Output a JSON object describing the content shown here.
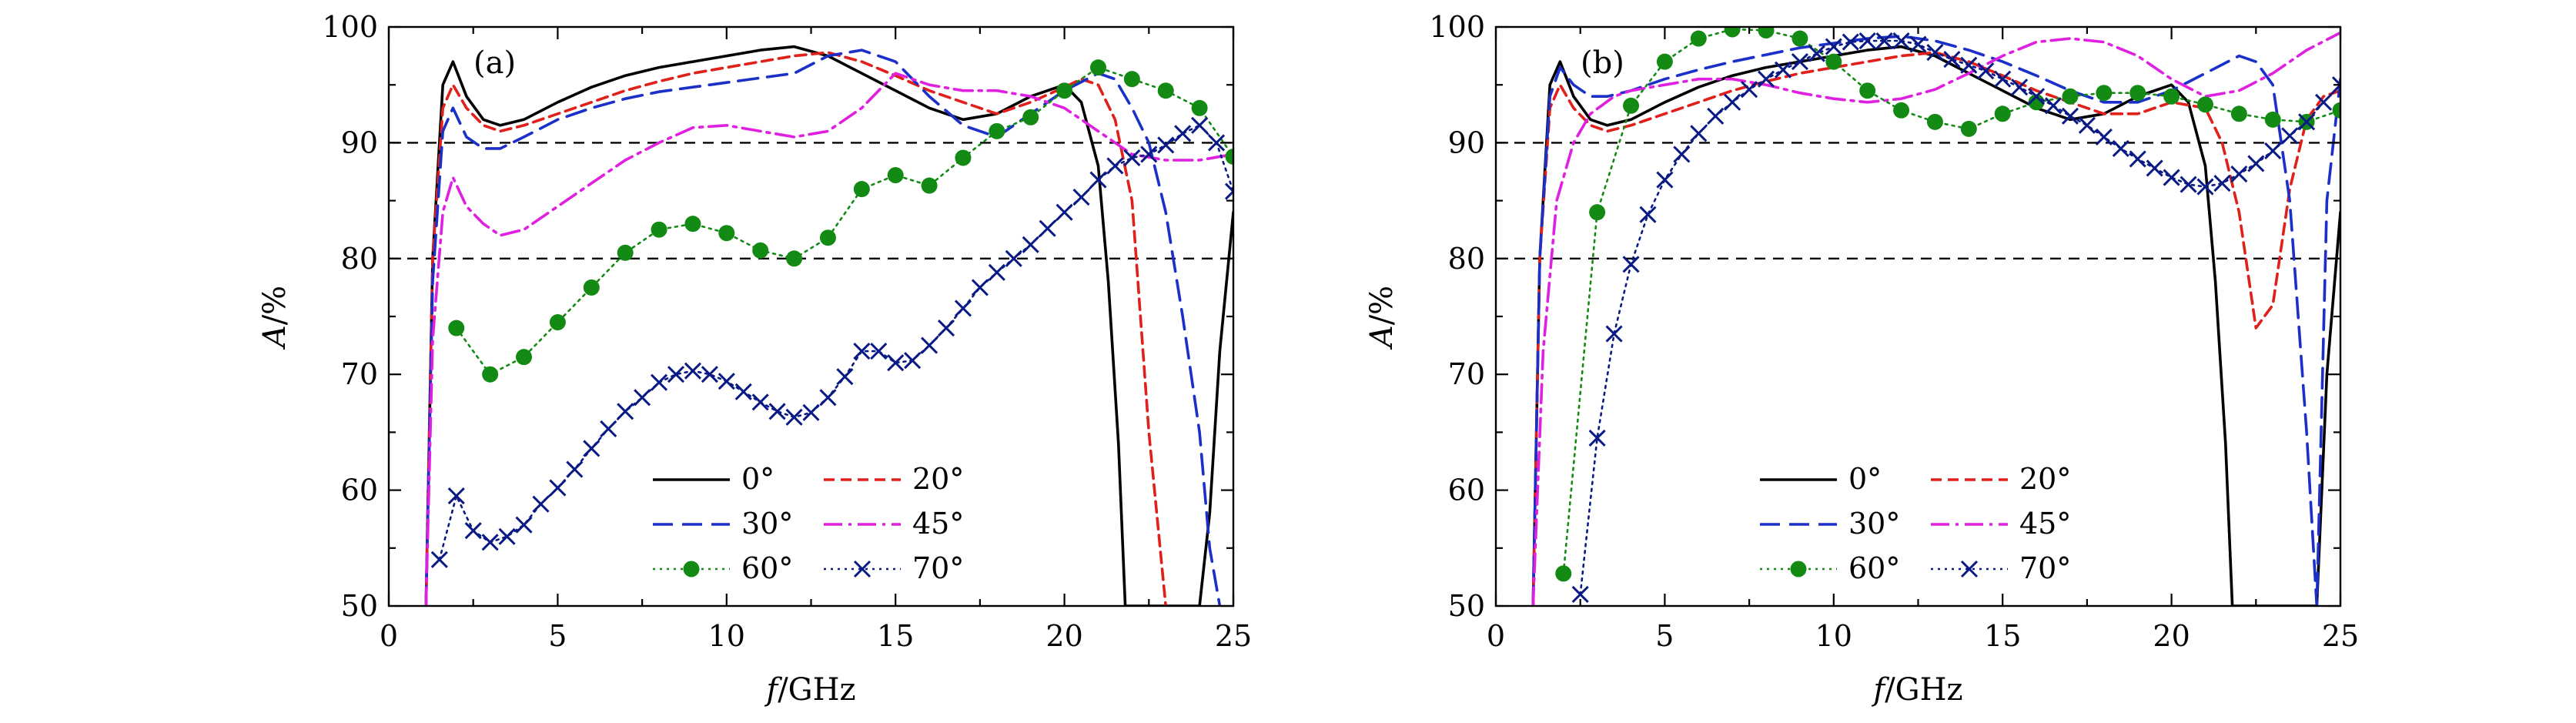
{
  "chart_data": [
    {
      "type": "line",
      "panel_label": "(a)",
      "xlabel_var": "f",
      "xlabel_unit": "/GHz",
      "ylabel_var": "A",
      "ylabel_unit": "/%",
      "xlim": [
        0,
        25
      ],
      "ylim": [
        50,
        100
      ],
      "xticks": [
        "0",
        "5",
        "10",
        "15",
        "20",
        "25"
      ],
      "yticks": [
        "50",
        "60",
        "70",
        "80",
        "90",
        "100"
      ],
      "reference_lines": [
        90,
        80
      ],
      "legend_position": "bottom-center",
      "series": [
        {
          "name": "0°",
          "color": "#000000",
          "style": "solid",
          "marker": "none",
          "x": [
            1.1,
            1.3,
            1.6,
            1.9,
            2.3,
            2.8,
            3.3,
            4,
            5,
            6,
            7,
            8,
            9,
            10,
            11,
            12,
            13,
            14,
            15,
            16,
            17,
            18,
            19,
            20,
            20.5,
            21,
            21.3,
            21.6,
            21.8,
            23,
            24,
            24.3,
            24.6,
            25
          ],
          "y": [
            50,
            80,
            95,
            97,
            94,
            92,
            91.5,
            92,
            93.5,
            94.8,
            95.8,
            96.5,
            97,
            97.5,
            98,
            98.3,
            97.5,
            96,
            94.5,
            93,
            92,
            92.5,
            94,
            95,
            93.5,
            88,
            78,
            64,
            50,
            50,
            50,
            58,
            72,
            84
          ]
        },
        {
          "name": "20°",
          "color": "#e0201b",
          "style": "dashed",
          "marker": "none",
          "x": [
            1.1,
            1.3,
            1.6,
            1.9,
            2.3,
            2.8,
            3.3,
            4,
            5,
            6,
            7,
            8,
            9,
            10,
            11,
            12,
            13,
            14,
            15,
            16,
            17,
            18,
            19,
            20,
            20.5,
            21,
            21.5,
            22,
            22.5,
            23
          ],
          "y": [
            50,
            80,
            93,
            95,
            93,
            91.5,
            91,
            91.5,
            92.5,
            93.5,
            94.5,
            95.3,
            96,
            96.5,
            97,
            97.5,
            97.8,
            97,
            95.8,
            94.5,
            93.5,
            92.5,
            93.5,
            94.8,
            95.5,
            95,
            92,
            85,
            65,
            50
          ]
        },
        {
          "name": "30°",
          "color": "#1b2fc9",
          "style": "longdash",
          "marker": "none",
          "x": [
            1.1,
            1.3,
            1.6,
            1.9,
            2.3,
            2.8,
            3.3,
            4,
            5,
            6,
            7,
            8,
            9,
            10,
            11,
            12,
            13,
            14,
            15,
            16,
            17,
            18,
            19,
            20,
            21,
            21.5,
            22,
            22.5,
            23,
            23.5,
            24,
            24.3,
            24.6
          ],
          "y": [
            50,
            78,
            91,
            93,
            90.5,
            89.5,
            89.5,
            90.5,
            92,
            93,
            93.8,
            94.4,
            94.8,
            95.2,
            95.6,
            96,
            97.5,
            98,
            97,
            94,
            91.5,
            90.5,
            92.5,
            94.5,
            96,
            95.5,
            93,
            90,
            84,
            75,
            65,
            55,
            50
          ]
        },
        {
          "name": "45°",
          "color": "#e020e0",
          "style": "dashdot",
          "marker": "none",
          "x": [
            1.1,
            1.3,
            1.6,
            1.9,
            2.3,
            2.8,
            3.3,
            4,
            5,
            6,
            7,
            8,
            9,
            10,
            11,
            12,
            13,
            14,
            15,
            16,
            17,
            18,
            19,
            20,
            21,
            22,
            23,
            24,
            25
          ],
          "y": [
            50,
            73,
            84,
            87,
            84.5,
            83,
            82,
            82.5,
            84.5,
            86.5,
            88.5,
            90,
            91.3,
            91.5,
            91,
            90.5,
            91,
            93,
            96,
            95,
            94.5,
            94.5,
            94,
            93,
            91,
            89,
            88.5,
            88.5,
            89
          ]
        },
        {
          "name": "60°",
          "color": "#138a13",
          "style": "dotted",
          "marker": "circle",
          "x": [
            2,
            3,
            4,
            5,
            6,
            7,
            8,
            9,
            10,
            11,
            12,
            13,
            14,
            15,
            16,
            17,
            18,
            19,
            20,
            21,
            22,
            23,
            24,
            25
          ],
          "y": [
            74,
            70,
            71.5,
            74.5,
            77.5,
            80.5,
            82.5,
            83,
            82.2,
            80.7,
            80,
            81.8,
            86,
            87.2,
            86.3,
            88.7,
            91,
            92.2,
            94.5,
            96.5,
            95.5,
            94.5,
            93,
            88.8
          ]
        },
        {
          "name": "70°",
          "color": "#0a1a85",
          "style": "dotted",
          "marker": "x",
          "x": [
            1.5,
            2,
            2.5,
            3,
            3.5,
            4,
            4.5,
            5,
            5.5,
            6,
            6.5,
            7,
            7.5,
            8,
            8.5,
            9,
            9.5,
            10,
            10.5,
            11,
            11.5,
            12,
            12.5,
            13,
            13.5,
            14,
            14.5,
            15,
            15.5,
            16,
            16.5,
            17,
            17.5,
            18,
            18.5,
            19,
            19.5,
            20,
            20.5,
            21,
            21.5,
            22,
            22.5,
            23,
            23.5,
            24,
            24.5,
            25
          ],
          "y": [
            54,
            59.5,
            56.5,
            55.5,
            56,
            57,
            58.8,
            60.2,
            61.8,
            63.6,
            65.3,
            66.8,
            68,
            69.3,
            70,
            70.3,
            70,
            69.4,
            68.5,
            67.6,
            66.8,
            66.3,
            66.7,
            68,
            69.8,
            72,
            72,
            71,
            71.2,
            72.5,
            74,
            75.7,
            77.5,
            78.8,
            80,
            81.2,
            82.6,
            84,
            85.3,
            86.8,
            88,
            88.7,
            89,
            89.8,
            90.8,
            91.5,
            90,
            85.8
          ]
        }
      ]
    },
    {
      "type": "line",
      "panel_label": "(b)",
      "xlabel_var": "f",
      "xlabel_unit": "/GHz",
      "ylabel_var": "A",
      "ylabel_unit": "/%",
      "xlim": [
        0,
        25
      ],
      "ylim": [
        50,
        100
      ],
      "xticks": [
        "0",
        "5",
        "10",
        "15",
        "20",
        "25"
      ],
      "yticks": [
        "50",
        "60",
        "70",
        "80",
        "90",
        "100"
      ],
      "reference_lines": [
        90,
        80
      ],
      "legend_position": "bottom-center",
      "series": [
        {
          "name": "0°",
          "color": "#000000",
          "style": "solid",
          "marker": "none",
          "x": [
            1.1,
            1.3,
            1.6,
            1.9,
            2.3,
            2.8,
            3.3,
            4,
            5,
            6,
            7,
            8,
            9,
            10,
            11,
            12,
            13,
            14,
            15,
            16,
            17,
            18,
            19,
            20,
            20.5,
            21,
            21.3,
            21.6,
            21.8,
            24.3,
            24.6,
            25
          ],
          "y": [
            50,
            80,
            95,
            97,
            94,
            92,
            91.5,
            92,
            93.5,
            94.8,
            95.8,
            96.5,
            97,
            97.5,
            98,
            98.3,
            97.5,
            96,
            94.5,
            93,
            92,
            92.5,
            94,
            95,
            93.5,
            88,
            78,
            64,
            50,
            50,
            70,
            84
          ]
        },
        {
          "name": "20°",
          "color": "#e0201b",
          "style": "dashed",
          "marker": "none",
          "x": [
            1.1,
            1.3,
            1.6,
            1.9,
            2.3,
            2.8,
            3.3,
            4,
            5,
            6,
            7,
            8,
            9,
            10,
            11,
            12,
            13,
            14,
            15,
            16,
            17,
            18,
            19,
            20,
            21,
            21.5,
            22,
            22.5,
            23,
            23.5,
            24,
            24.5,
            25
          ],
          "y": [
            50,
            80,
            93,
            95,
            93,
            91.5,
            91,
            91.5,
            92.5,
            93.5,
            94.5,
            95.3,
            96,
            96.5,
            97,
            97.5,
            97.8,
            97,
            95.8,
            94.5,
            93.5,
            92.5,
            92.5,
            93.5,
            93,
            90,
            84,
            74,
            76,
            86,
            92,
            94,
            94.5
          ]
        },
        {
          "name": "30°",
          "color": "#1b2fc9",
          "style": "longdash",
          "marker": "none",
          "x": [
            1.1,
            1.3,
            1.6,
            1.9,
            2.3,
            2.8,
            3.3,
            4,
            5,
            6,
            7,
            8,
            9,
            10,
            11,
            12,
            13,
            14,
            15,
            16,
            17,
            18,
            19,
            20,
            21,
            22,
            22.5,
            23,
            23.5,
            24,
            24.3,
            24.6,
            25
          ],
          "y": [
            50,
            80,
            94,
            96.5,
            95,
            94,
            94,
            94.5,
            95.5,
            96.3,
            97,
            97.6,
            98.2,
            98.6,
            99,
            99.2,
            98.8,
            98,
            97,
            95.8,
            94.5,
            93.5,
            93.5,
            94.5,
            96,
            97.5,
            97,
            95,
            85,
            65,
            50,
            85,
            95.5
          ]
        },
        {
          "name": "45°",
          "color": "#e020e0",
          "style": "dashdot",
          "marker": "none",
          "x": [
            1.1,
            1.4,
            1.8,
            2.3,
            2.8,
            3.5,
            4,
            5,
            6,
            7,
            8,
            9,
            10,
            11,
            12,
            13,
            14,
            15,
            16,
            17,
            18,
            19,
            20,
            21,
            22,
            23,
            24,
            25
          ],
          "y": [
            50,
            72,
            85,
            90,
            92.5,
            94,
            94.5,
            95,
            95.5,
            95.5,
            95,
            94.3,
            93.8,
            93.5,
            93.8,
            94.6,
            96,
            97.5,
            98.7,
            99,
            98.7,
            97.5,
            95.5,
            94,
            94.5,
            96,
            98,
            99.5
          ]
        },
        {
          "name": "60°",
          "color": "#138a13",
          "style": "dotted",
          "marker": "circle",
          "x": [
            2,
            3,
            4,
            5,
            6,
            7,
            8,
            9,
            10,
            11,
            12,
            13,
            14,
            15,
            16,
            17,
            18,
            19,
            20,
            21,
            22,
            23,
            24,
            25
          ],
          "y": [
            52.8,
            84,
            93.2,
            97,
            99,
            99.8,
            99.7,
            99,
            97,
            94.5,
            92.8,
            91.8,
            91.2,
            92.5,
            93.5,
            94,
            94.3,
            94.3,
            94,
            93.3,
            92.5,
            92,
            91.8,
            92.8
          ]
        },
        {
          "name": "70°",
          "color": "#0a1a85",
          "style": "dotted",
          "marker": "x",
          "x": [
            2.5,
            3,
            3.5,
            4,
            4.5,
            5,
            5.5,
            6,
            6.5,
            7,
            7.5,
            8,
            8.5,
            9,
            9.5,
            10,
            10.5,
            11,
            11.5,
            12,
            12.5,
            13,
            13.5,
            14,
            14.5,
            15,
            15.5,
            16,
            16.5,
            17,
            17.5,
            18,
            18.5,
            19,
            19.5,
            20,
            20.5,
            21,
            21.5,
            22,
            22.5,
            23,
            23.5,
            24,
            24.5,
            25
          ],
          "y": [
            51,
            64.5,
            73.5,
            79.5,
            83.8,
            86.8,
            89,
            90.8,
            92.3,
            93.5,
            94.6,
            95.5,
            96.3,
            97,
            97.7,
            98.3,
            98.7,
            98.8,
            98.8,
            98.8,
            98.5,
            97.8,
            97.2,
            96.7,
            96.2,
            95.5,
            94.8,
            94,
            93.2,
            92.3,
            91.5,
            90.5,
            89.5,
            88.6,
            87.8,
            87,
            86.4,
            86.2,
            86.5,
            87.3,
            88.2,
            89.3,
            90.6,
            91.8,
            93.5,
            95
          ]
        }
      ]
    }
  ]
}
